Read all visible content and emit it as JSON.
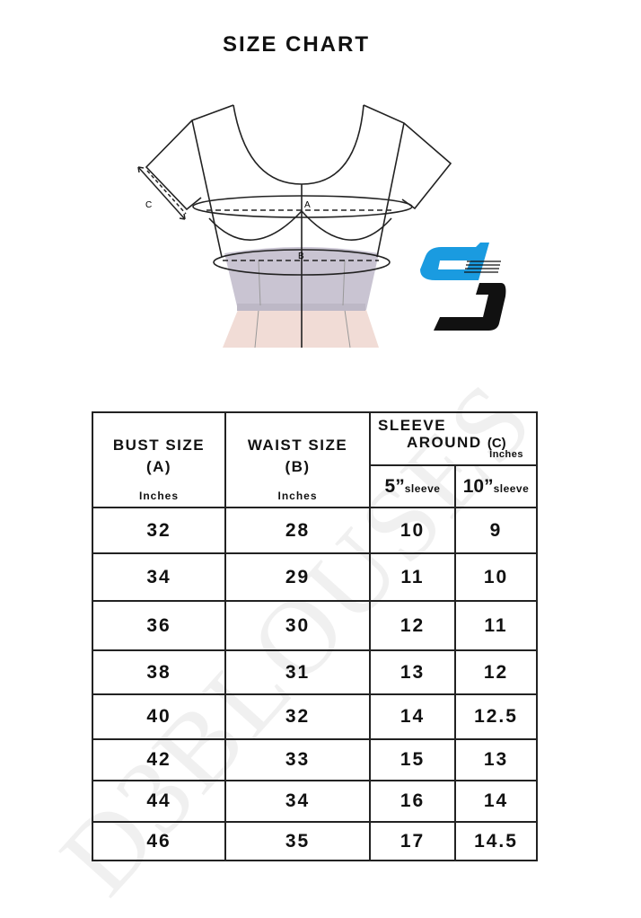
{
  "title": "SIZE CHART",
  "diagram": {
    "labels": {
      "a": "A",
      "b": "B",
      "c": "C"
    }
  },
  "watermark": "D3BLOUSES",
  "table": {
    "headers": {
      "bust": "BUST SIZE",
      "bust_sub": "(A)",
      "bust_unit": "Inches",
      "waist": "WAIST SIZE",
      "waist_sub": "(B)",
      "waist_unit": "Inches",
      "sleeve_line1": "SLEEVE",
      "sleeve_line2": "AROUND",
      "sleeve_sub": "(C)",
      "sleeve_unit": "Inches",
      "col5_num": "5”",
      "col5_label": "sleeve",
      "col10_num": "10”",
      "col10_label": "sleeve"
    },
    "rows": [
      [
        "32",
        "28",
        "10",
        "9"
      ],
      [
        "34",
        "29",
        "11",
        "10"
      ],
      [
        "36",
        "30",
        "12",
        "11"
      ],
      [
        "38",
        "31",
        "13",
        "12"
      ],
      [
        "40",
        "32",
        "14",
        "12.5"
      ],
      [
        "42",
        "33",
        "15",
        "13"
      ],
      [
        "44",
        "34",
        "16",
        "14"
      ],
      [
        "46",
        "35",
        "17",
        "14.5"
      ]
    ]
  },
  "colors": {
    "logo_blue": "#1a9be0",
    "logo_black": "#111111",
    "waist_fill": "#c9c4d2",
    "skirt_fill": "#f1dcd6"
  }
}
